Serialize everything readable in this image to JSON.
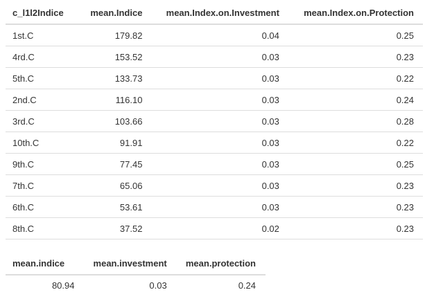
{
  "table_main": {
    "headers": [
      "c_l1l2Indice",
      "mean.Indice",
      "mean.Index.on.Investment",
      "mean.Index.on.Protection"
    ],
    "rows": [
      [
        "1st.C",
        "179.82",
        "0.04",
        "0.25"
      ],
      [
        "4rd.C",
        "153.52",
        "0.03",
        "0.23"
      ],
      [
        "5th.C",
        "133.73",
        "0.03",
        "0.22"
      ],
      [
        "2nd.C",
        "116.10",
        "0.03",
        "0.24"
      ],
      [
        "3rd.C",
        "103.66",
        "0.03",
        "0.28"
      ],
      [
        "10th.C",
        "91.91",
        "0.03",
        "0.22"
      ],
      [
        "9th.C",
        "77.45",
        "0.03",
        "0.25"
      ],
      [
        "7th.C",
        "65.06",
        "0.03",
        "0.23"
      ],
      [
        "6th.C",
        "53.61",
        "0.03",
        "0.23"
      ],
      [
        "8th.C",
        "37.52",
        "0.02",
        "0.23"
      ]
    ]
  },
  "table_summary": {
    "headers": [
      "mean.indice",
      "mean.investment",
      "mean.protection"
    ],
    "rows": [
      [
        "80.94",
        "0.03",
        "0.24"
      ]
    ]
  }
}
